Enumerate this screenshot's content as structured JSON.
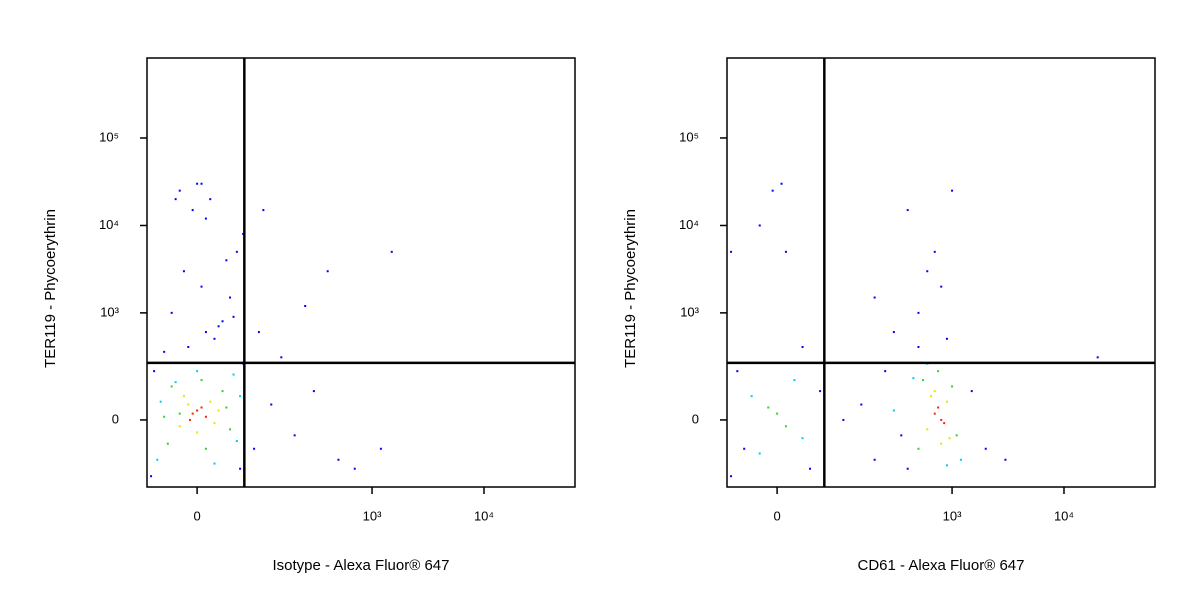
{
  "chart_data": [
    {
      "type": "scatter",
      "x_label": "Isotype - Alexa Fluor® 647",
      "y_label": "TER119 - Phycoerythrin",
      "xscale": "biexponential",
      "yscale": "biexponential",
      "xlim": [
        -67,
        65000
      ],
      "ylim": [
        -340,
        820000
      ],
      "xticks": [
        0,
        {
          "value": 1000,
          "label": "10³"
        },
        {
          "value": 10000,
          "label": "10⁴"
        }
      ],
      "yticks": [
        0,
        {
          "value": 1000,
          "label": "10³"
        },
        {
          "value": 10000,
          "label": "10⁴"
        },
        {
          "value": 100000,
          "label": "10⁵"
        }
      ],
      "quadrant_x": 62,
      "quadrant_y": 256,
      "series": [
        {
          "color": "#0000ff",
          "x": [
            -60,
            -55,
            55,
            60,
            -10,
            10,
            30,
            -30,
            5,
            -15,
            20,
            40,
            -5,
            50,
            0,
            25,
            -40,
            15,
            -20,
            35,
            80,
            120,
            150,
            200,
            300,
            500,
            700,
            1200,
            90,
            250,
            400,
            1500,
            60,
            100,
            -25,
            10,
            5,
            45
          ],
          "values": [
            -250,
            200,
            -200,
            250,
            400,
            600,
            800,
            1000,
            2000,
            3000,
            500,
            1500,
            15000,
            5000,
            30000,
            700,
            350,
            20000,
            25000,
            4000,
            -100,
            50,
            300,
            -50,
            100,
            -150,
            -200,
            -100,
            600,
            1200,
            3000,
            5000,
            8000,
            15000,
            20000,
            12000,
            30000,
            900
          ]
        },
        {
          "color": "#00c8ff",
          "x": [
            -50,
            45,
            50,
            -45,
            20,
            -25,
            55,
            0
          ],
          "values": [
            -150,
            180,
            -70,
            60,
            -170,
            140,
            80,
            200
          ]
        },
        {
          "color": "#30d030",
          "x": [
            -35,
            30,
            40,
            -30,
            10,
            -20,
            35,
            5,
            -40
          ],
          "values": [
            -80,
            100,
            -30,
            120,
            -100,
            20,
            40,
            150,
            10
          ]
        },
        {
          "color": "#f0e000",
          "x": [
            -20,
            15,
            25,
            -15,
            0,
            20,
            -10
          ],
          "values": [
            -20,
            60,
            30,
            80,
            -40,
            -10,
            50
          ]
        },
        {
          "color": "#ff2000",
          "x": [
            -5,
            5,
            10,
            0,
            -8
          ],
          "values": [
            20,
            40,
            10,
            30,
            0
          ]
        }
      ]
    },
    {
      "type": "scatter",
      "x_label": "CD61 - Alexa Fluor® 647",
      "y_label": "TER119 - Phycoerythrin",
      "xscale": "biexponential",
      "yscale": "biexponential",
      "xlim": [
        -67,
        65000
      ],
      "ylim": [
        -340,
        820000
      ],
      "xticks": [
        0,
        {
          "value": 1000,
          "label": "10³"
        },
        {
          "value": 10000,
          "label": "10⁴"
        }
      ],
      "yticks": [
        0,
        {
          "value": 1000,
          "label": "10³"
        },
        {
          "value": 10000,
          "label": "10⁴"
        },
        {
          "value": 100000,
          "label": "10⁵"
        }
      ],
      "quadrant_x": 62,
      "quadrant_y": 256,
      "series": [
        {
          "color": "#0000ff",
          "x": [
            -60,
            -50,
            55,
            -40,
            40,
            100,
            150,
            200,
            250,
            350,
            400,
            1500,
            2000,
            3000,
            -5,
            5,
            -20,
            10,
            300,
            500,
            800,
            1000,
            600,
            700,
            400,
            500,
            900,
            20000,
            -60,
            30,
            200
          ],
          "values": [
            -250,
            200,
            100,
            -100,
            -200,
            0,
            50,
            -150,
            200,
            -50,
            -200,
            100,
            -100,
            -150,
            25000,
            30000,
            10000,
            5000,
            600,
            1000,
            2000,
            25000,
            3000,
            5000,
            15000,
            400,
            500,
            300,
            5000,
            400,
            1500
          ]
        },
        {
          "color": "#00c8ff",
          "x": [
            450,
            1200,
            -30,
            30,
            20,
            -20,
            300,
            600,
            900
          ],
          "values": [
            160,
            -150,
            80,
            -60,
            150,
            -120,
            30,
            250,
            -180
          ]
        },
        {
          "color": "#30d030",
          "x": [
            500,
            1000,
            550,
            1100,
            0,
            10,
            -10,
            750
          ],
          "values": [
            -100,
            120,
            150,
            -50,
            20,
            -20,
            40,
            200
          ]
        },
        {
          "color": "#f0e000",
          "x": [
            600,
            900,
            650,
            950,
            700,
            800
          ],
          "values": [
            -30,
            60,
            80,
            -60,
            100,
            -80
          ]
        },
        {
          "color": "#ff2000",
          "x": [
            700,
            800,
            750,
            850
          ],
          "values": [
            20,
            0,
            40,
            -10
          ]
        }
      ]
    }
  ]
}
